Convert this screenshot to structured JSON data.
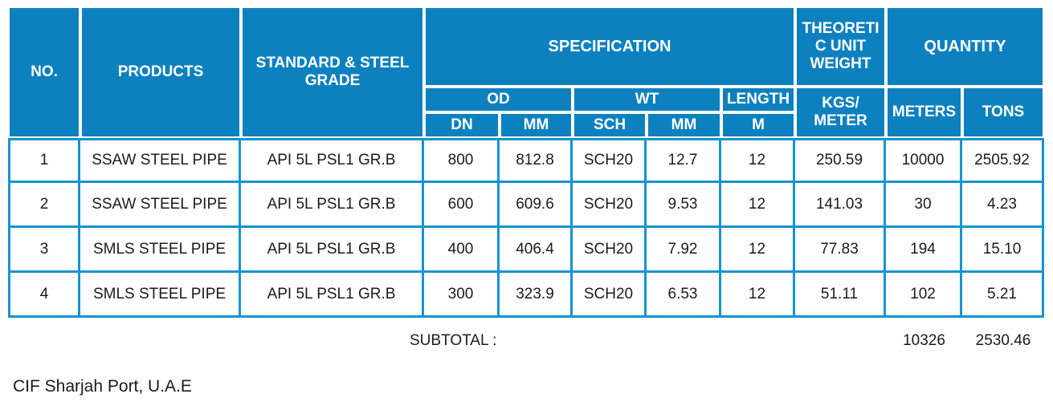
{
  "header": {
    "no": "NO.",
    "products": "PRODUCTS",
    "standard": "STANDARD & STEEL\nGRADE",
    "specification": "SPECIFICATION",
    "od": "OD",
    "wt": "WT",
    "length": "LENGTH",
    "dn": "DN",
    "od_mm": "MM",
    "sch": "SCH",
    "wt_mm": "MM",
    "m": "M",
    "theoretic_unit_weight": "THEORETI\nC UNIT\nWEIGHT",
    "kgs_meter": "KGS/\nMETER",
    "quantity": "QUANTITY",
    "meters": "METERS",
    "tons": "TONS"
  },
  "rows": [
    {
      "no": "1",
      "product": "SSAW STEEL PIPE",
      "standard": "API 5L PSL1 GR.B",
      "dn": "800",
      "od_mm": "812.8",
      "sch": "SCH20",
      "wt_mm": "12.7",
      "length_m": "12",
      "kgs_meter": "250.59",
      "meters": "10000",
      "tons": "2505.92"
    },
    {
      "no": "2",
      "product": "SSAW STEEL PIPE",
      "standard": "API 5L PSL1 GR.B",
      "dn": "600",
      "od_mm": "609.6",
      "sch": "SCH20",
      "wt_mm": "9.53",
      "length_m": "12",
      "kgs_meter": "141.03",
      "meters": "30",
      "tons": "4.23"
    },
    {
      "no": "3",
      "product": "SMLS STEEL PIPE",
      "standard": "API 5L PSL1 GR.B",
      "dn": "400",
      "od_mm": "406.4",
      "sch": "SCH20",
      "wt_mm": "7.92",
      "length_m": "12",
      "kgs_meter": "77.83",
      "meters": "194",
      "tons": "15.10"
    },
    {
      "no": "4",
      "product": "SMLS STEEL PIPE",
      "standard": "API 5L PSL1 GR.B",
      "dn": "300",
      "od_mm": "323.9",
      "sch": "SCH20",
      "wt_mm": "6.53",
      "length_m": "12",
      "kgs_meter": "51.11",
      "meters": "102",
      "tons": "5.21"
    }
  ],
  "subtotal": {
    "label": "SUBTOTAL :",
    "meters": "10326",
    "tons": "2530.46"
  },
  "footer": {
    "delivery_terms": "CIF Sharjah Port, U.A.E"
  },
  "colors": {
    "header_blue": "#0d81c0",
    "grid_blue": "#1593d2",
    "header_text": "#ffffff",
    "body_text": "#1b1b1b"
  }
}
